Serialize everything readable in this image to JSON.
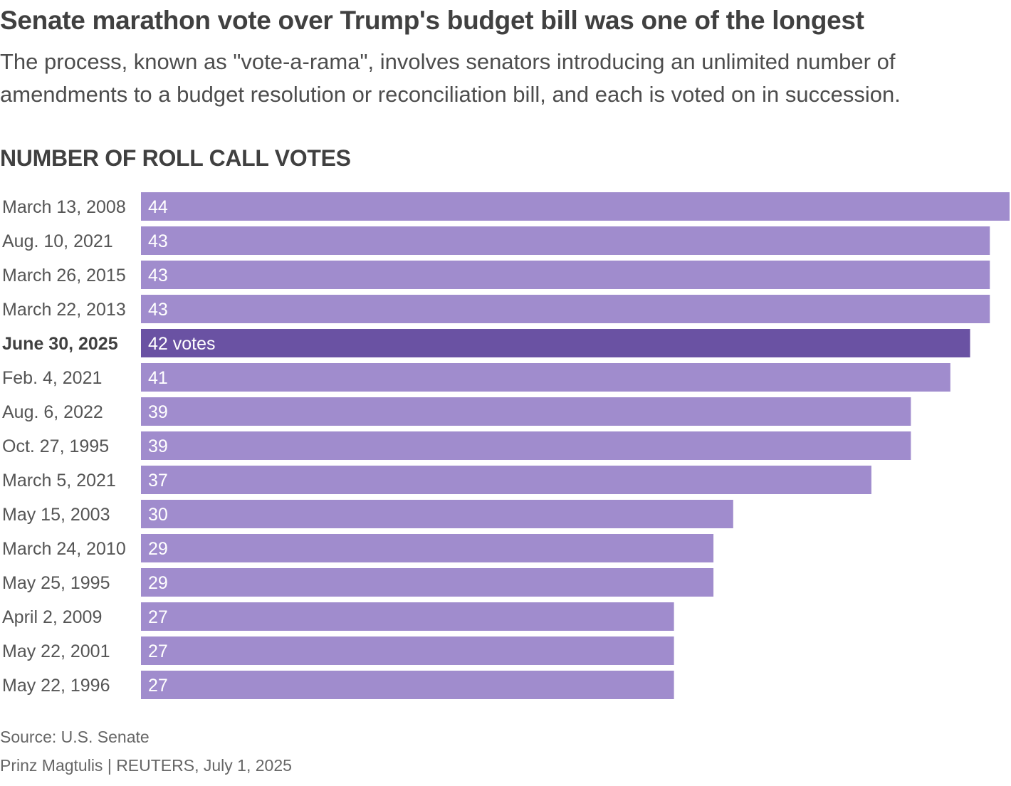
{
  "title": "Senate marathon vote over Trump's budget bill was one of the longest",
  "subtitle": "The process, known as \"vote-a-rama\", involves senators introducing an unlimited number of amendments to a budget resolution or reconciliation bill, and each is voted on in succession.",
  "chart_heading": "NUMBER OF ROLL CALL VOTES",
  "source": "Source: U.S. Senate",
  "credit": "Prinz Magtulis | REUTERS, July 1, 2025",
  "colors": {
    "bar": "#a08ccd",
    "highlight_bar": "#6a52a3",
    "bar_label": "#ffffff",
    "category_label": "#555555",
    "highlight_label": "#404040"
  },
  "chart_data": {
    "type": "bar",
    "orientation": "horizontal",
    "title": "NUMBER OF ROLL CALL VOTES",
    "categories": [
      "March 13, 2008",
      "Aug. 10, 2021",
      "March 26, 2015",
      "March 22, 2013",
      "June 30, 2025",
      "Feb. 4, 2021",
      "Aug. 6, 2022",
      "Oct. 27, 1995",
      "March 5, 2021",
      "May 15, 2003",
      "March 24, 2010",
      "May 25, 1995",
      "April 2, 2009",
      "May 22, 2001",
      "May 22, 1996"
    ],
    "values": [
      44,
      43,
      43,
      43,
      42,
      41,
      39,
      39,
      37,
      30,
      29,
      29,
      27,
      27,
      27
    ],
    "value_labels": [
      "44",
      "43",
      "43",
      "43",
      "42 votes",
      "41",
      "39",
      "39",
      "37",
      "30",
      "29",
      "29",
      "27",
      "27",
      "27"
    ],
    "highlight_index": 4,
    "xlim": [
      0,
      44
    ],
    "grid": false,
    "xlabel": "",
    "ylabel": ""
  }
}
